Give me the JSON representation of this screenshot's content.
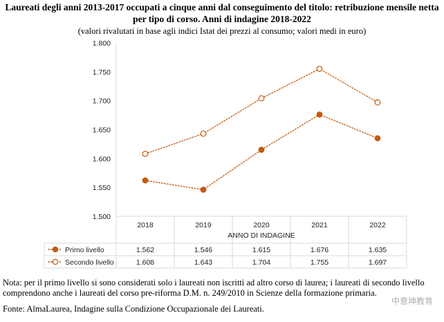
{
  "header": {
    "title_line1": "Laureati degli anni 2013-2017 occupati a cinque anni dal conseguimento del titolo: retribuzione mensile netta",
    "title_line2": "per tipo di corso. Anni di indagine 2018-2022",
    "subtitle": "(valori rivalutati in base agli indici Istat dei prezzi al consumo; valori medi in euro)"
  },
  "chart_data": {
    "type": "line",
    "x": [
      "2018",
      "2019",
      "2020",
      "2021",
      "2022"
    ],
    "xlabel": "ANNO DI INDAGINE",
    "ylabel": "",
    "ylim": [
      1.5,
      1.8
    ],
    "yticks": [
      "1.500",
      "1.550",
      "1.600",
      "1.650",
      "1.700",
      "1.750",
      "1.800"
    ],
    "grid": false,
    "legend": "data-table-below",
    "series": [
      {
        "name": "Primo livello",
        "values": [
          1.562,
          1.546,
          1.615,
          1.676,
          1.635
        ],
        "labels": [
          "1.562",
          "1.546",
          "1.615",
          "1.676",
          "1.635"
        ],
        "color": "#c55a11",
        "marker": "filled-circle",
        "line": "dotted"
      },
      {
        "name": "Secondo livello",
        "values": [
          1.608,
          1.643,
          1.704,
          1.755,
          1.697
        ],
        "labels": [
          "1.608",
          "1.643",
          "1.704",
          "1.755",
          "1.697"
        ],
        "color": "#c55a11",
        "marker": "hollow-circle",
        "line": "dotted"
      }
    ]
  },
  "footer": {
    "note": "Nota: per il primo livello si sono considerati solo i laureati non iscritti ad altro corso di laurea; i laureati di secondo livello comprendono anche i laureati del corso pre-riforma D.M. n. 249/2010 in Scienze della formazione primaria.",
    "source": "Fonte: AlmaLaurea, Indagine sulla Condizione Occupazionale dei Laureati."
  },
  "watermark": "中意坤教育"
}
